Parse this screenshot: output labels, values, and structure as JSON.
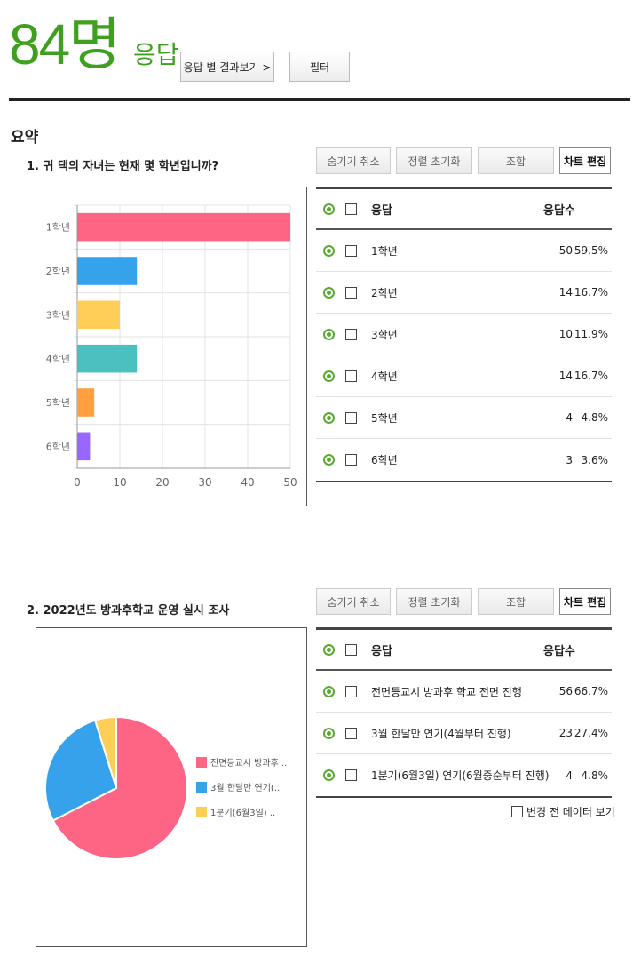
{
  "header": {
    "count": "84명",
    "count_unit": "응답",
    "results_by_response_button": "응답 별 결과보기 >",
    "filter_button": "필터"
  },
  "summary_title": "요약",
  "toolbar": {
    "unhide": "숨기기 취소",
    "reset_sort": "정렬 초기화",
    "combine": "조합",
    "edit_chart": "차트 편집"
  },
  "table_header": {
    "response": "응답",
    "count": "응답수"
  },
  "colors": {
    "accent": "#3fa020",
    "pink": "#fe6484",
    "blue": "#36a2eb",
    "yellow": "#ffce56",
    "teal": "#4bc0c0",
    "orange": "#ff9f40",
    "purple": "#9966ff"
  },
  "q1": {
    "title": "1. 귀 댁의 자녀는 현재 몇 학년입니까?",
    "rows": [
      {
        "label": "1학년",
        "count": "50",
        "pct": "59.5%"
      },
      {
        "label": "2학년",
        "count": "14",
        "pct": "16.7%"
      },
      {
        "label": "3학년",
        "count": "10",
        "pct": "11.9%"
      },
      {
        "label": "4학년",
        "count": "14",
        "pct": "16.7%"
      },
      {
        "label": "5학년",
        "count": "4",
        "pct": "4.8%"
      },
      {
        "label": "6학년",
        "count": "3",
        "pct": "3.6%"
      }
    ]
  },
  "q2": {
    "title": "2. 2022년도 방과후학교 운영 실시 조사",
    "rows": [
      {
        "label": "전면등교시 방과후 학교 전면 진행",
        "count": "56",
        "pct": "66.7%"
      },
      {
        "label": "3월 한달만 연기(4월부터 진행)",
        "count": "23",
        "pct": "27.4%"
      },
      {
        "label": "1분기(6월3일) 연기(6월중순부터 진행)",
        "count": "4",
        "pct": "4.8%"
      }
    ],
    "show_before_change": "변경 전 데이터 보기"
  },
  "chart_data": [
    {
      "type": "bar",
      "orientation": "horizontal",
      "categories": [
        "1학년",
        "2학년",
        "3학년",
        "4학년",
        "5학년",
        "6학년"
      ],
      "values": [
        50,
        14,
        10,
        14,
        4,
        3
      ],
      "colors": [
        "#fe6484",
        "#36a2eb",
        "#ffce56",
        "#4bc0c0",
        "#ff9f40",
        "#9966ff"
      ],
      "xlim": [
        0,
        50
      ],
      "xticks": [
        0,
        10,
        20,
        30,
        40,
        50
      ],
      "grid": true
    },
    {
      "type": "pie",
      "categories": [
        "전면등교시 방과후 ..",
        "3월 한달만 연기(..",
        "1분기(6월3일) .."
      ],
      "values": [
        56,
        23,
        4
      ],
      "colors": [
        "#fe6484",
        "#36a2eb",
        "#ffce56"
      ],
      "legend": "right"
    }
  ]
}
